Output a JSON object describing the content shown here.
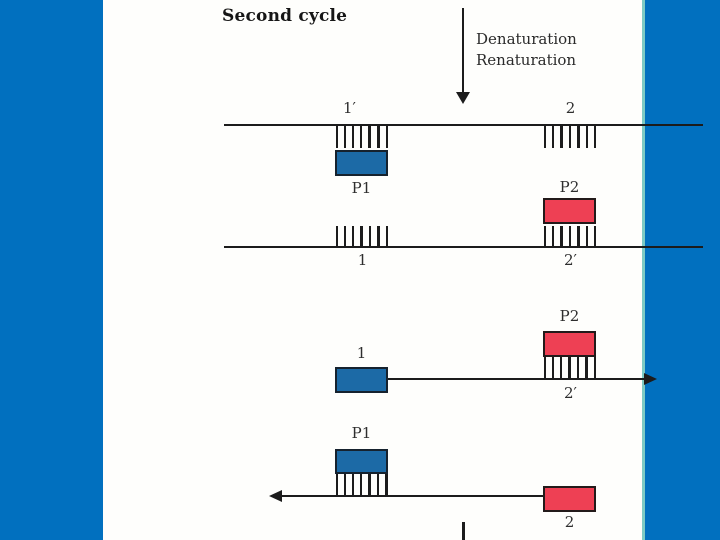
{
  "slide": {
    "title": "Second cycle",
    "process_arrow": {
      "direction": "down",
      "line1": "Denaturation",
      "line2": "Renaturation"
    }
  },
  "colors": {
    "background": "#0170bf",
    "panel": "#fefefc",
    "panel_edge": "#7ecbc4",
    "ink": "#1c1c1c",
    "primer_blue": "#1c6aa6",
    "primer_blue_border": "#16222e",
    "primer_red": "#ee4054",
    "primer_red_border": "#231a1a"
  },
  "strand1": {
    "description": "top template strand",
    "site_left_label": "1′",
    "site_right_label": "2",
    "primer_label": "P1"
  },
  "strand2": {
    "description": "bottom template strand",
    "primer_label": "P2",
    "site_left_label": "1",
    "site_right_label": "2′"
  },
  "strand3": {
    "description": "extension product, arrow pointing right",
    "primer_top_label": "P2",
    "segment_left_label": "1",
    "site_label": "2′"
  },
  "strand4": {
    "description": "extension product, arrow pointing left",
    "primer_top_label": "P1",
    "segment_right_label": "2"
  },
  "tick_groups": {
    "s1_left": [
      2,
      2,
      2,
      2,
      3,
      3,
      2
    ],
    "s1_right": [
      2,
      2,
      3,
      2,
      3,
      2,
      2
    ],
    "s2_left": [
      2,
      2,
      2,
      3,
      2,
      3,
      2
    ],
    "s2_right": [
      2,
      2,
      3,
      2,
      3,
      2,
      2
    ],
    "s3": [
      2,
      2,
      2,
      3,
      2,
      3,
      2
    ],
    "s4": [
      2,
      2,
      2,
      2,
      3,
      2,
      3
    ]
  }
}
